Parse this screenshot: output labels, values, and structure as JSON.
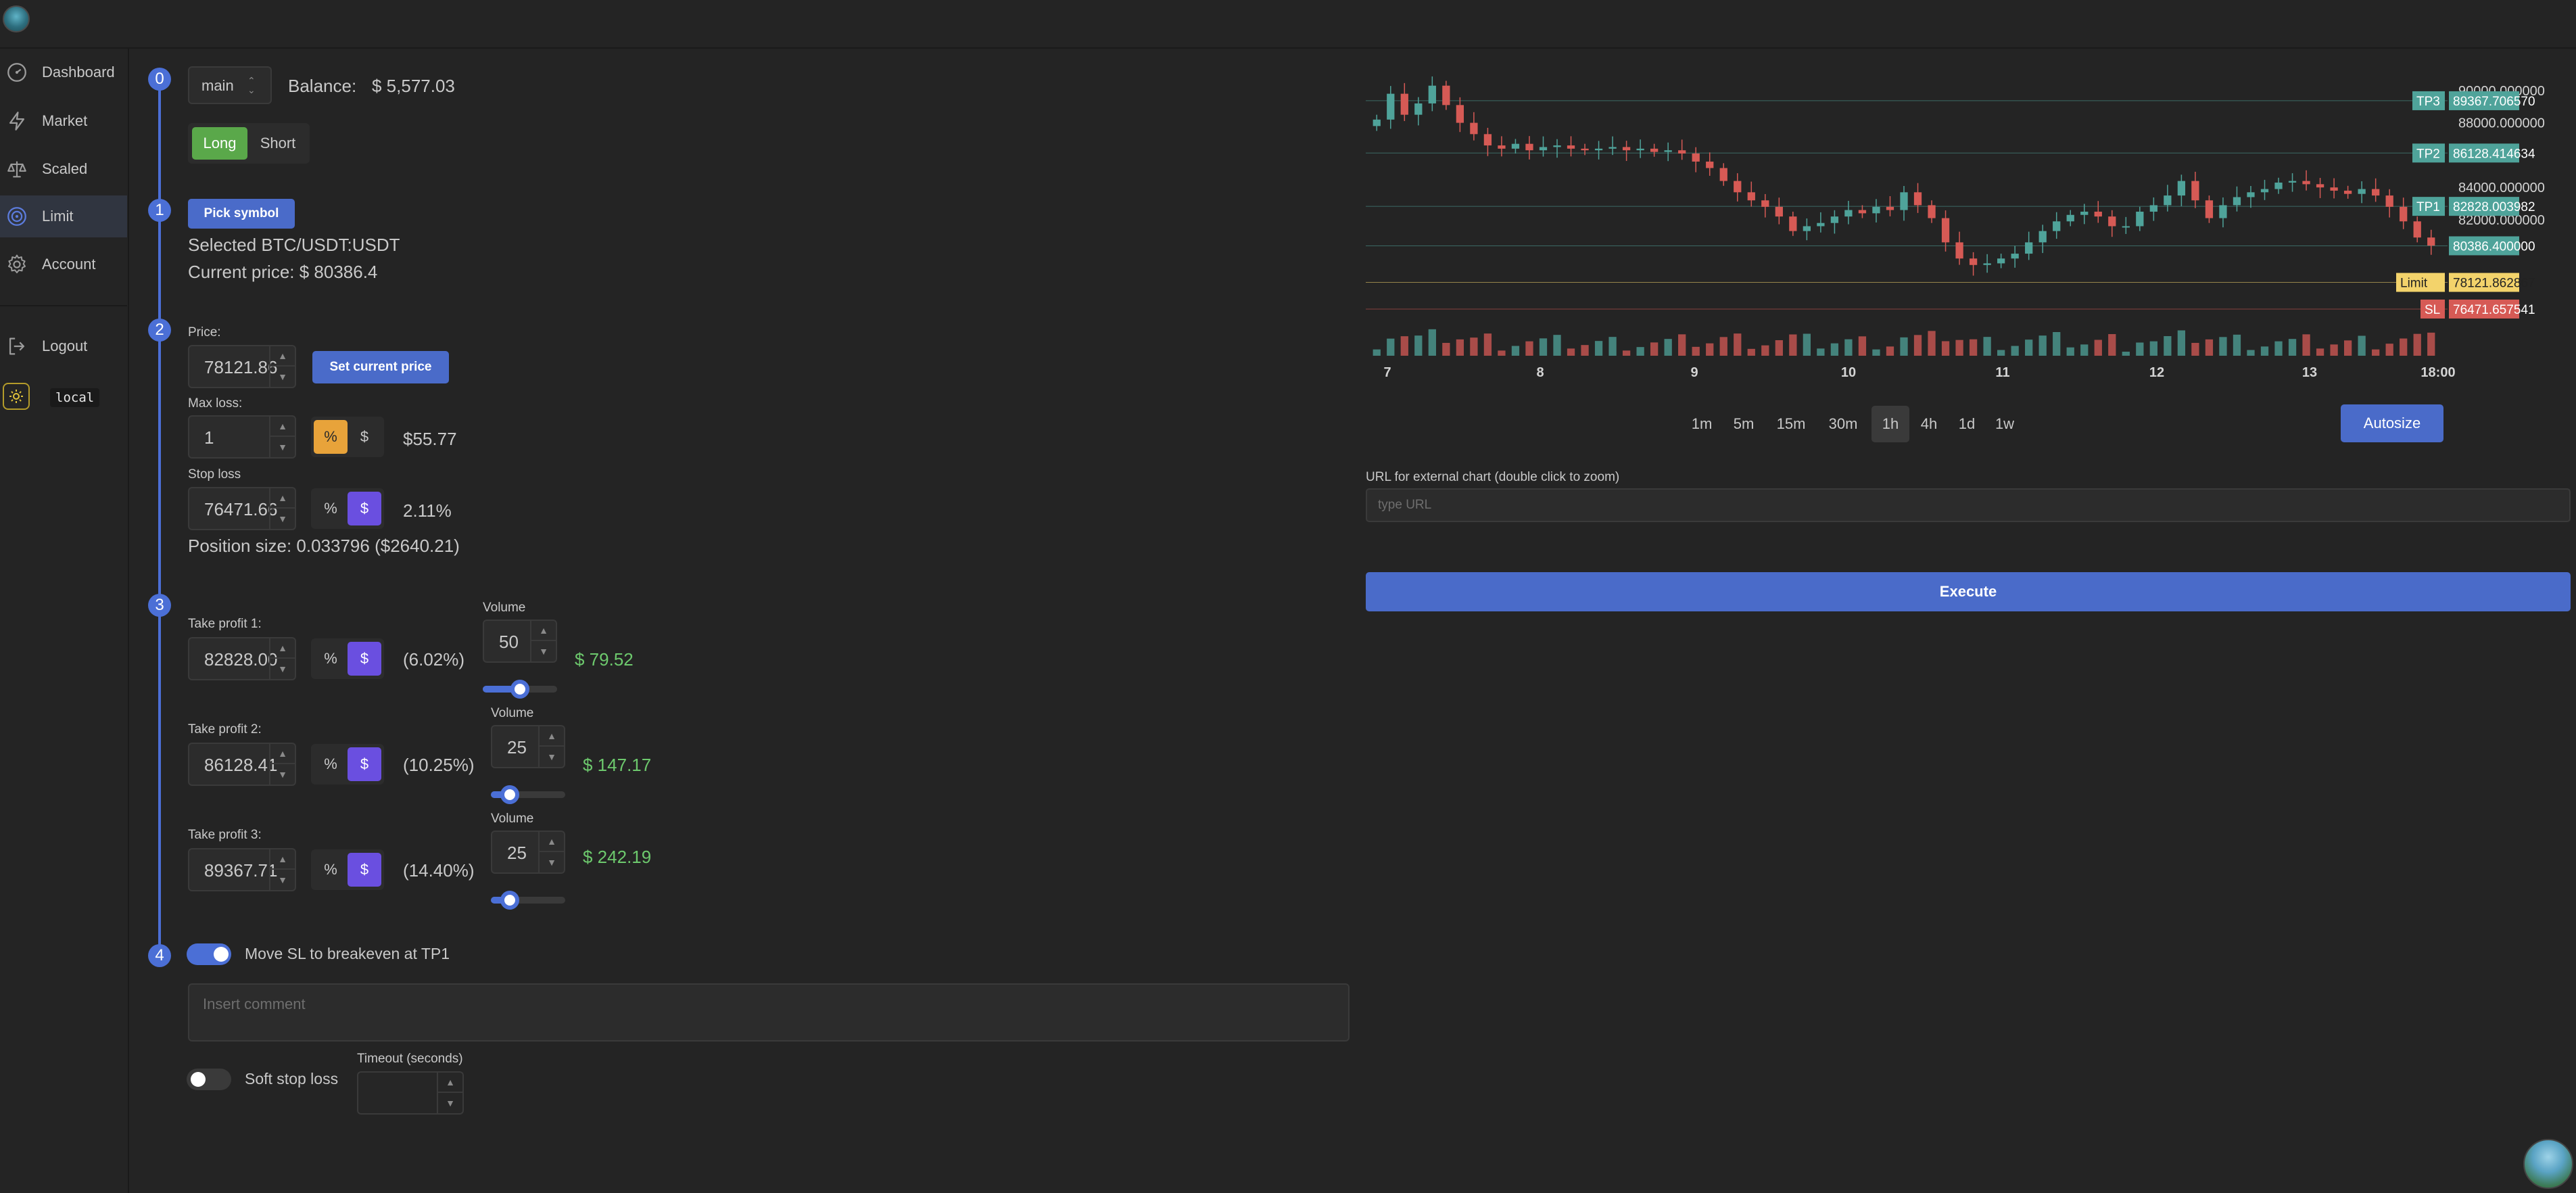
{
  "sidebar": {
    "items": [
      {
        "label": "Dashboard",
        "icon": "dashboard-icon"
      },
      {
        "label": "Market",
        "icon": "bolt-icon"
      },
      {
        "label": "Scaled",
        "icon": "scale-icon"
      },
      {
        "label": "Limit",
        "icon": "target-icon"
      },
      {
        "label": "Account",
        "icon": "gear-icon"
      },
      {
        "label": "Logout",
        "icon": "logout-icon"
      }
    ],
    "env_badge": "local"
  },
  "steps": [
    "0",
    "1",
    "2",
    "3",
    "4"
  ],
  "form": {
    "account_select": "main",
    "balance_label": "Balance:",
    "balance_value": "$ 5,577.03",
    "side_long": "Long",
    "side_short": "Short",
    "pick_symbol": "Pick symbol",
    "selected_symbol": "Selected BTC/USDT:USDT",
    "current_price": "Current price: $ 80386.4",
    "price_label": "Price:",
    "price_value": "78121.86",
    "set_current_price": "Set current price",
    "max_loss_label": "Max loss:",
    "max_loss_value": "1",
    "pct": "%",
    "usd": "$",
    "max_loss_usd": "$55.77",
    "stop_loss_label": "Stop loss",
    "stop_loss_value": "76471.66",
    "stop_loss_pct": "2.11%",
    "position_size": "Position size: 0.033796 ($2640.21)",
    "volume_label": "Volume",
    "take_profits": [
      {
        "label": "Take profit 1:",
        "value": "82828.00",
        "pct": "(6.02%)",
        "volume": "50",
        "profit": "$ 79.52",
        "level": 0.5
      },
      {
        "label": "Take profit 2:",
        "value": "86128.41",
        "pct": "(10.25%)",
        "volume": "25",
        "profit": "$ 147.17",
        "level": 0.25
      },
      {
        "label": "Take profit 3:",
        "value": "89367.71",
        "pct": "(14.40%)",
        "volume": "25",
        "profit": "$ 242.19",
        "level": 0.25
      }
    ],
    "move_sl_label": "Move SL to breakeven at TP1",
    "comment_placeholder": "Insert comment",
    "soft_sl_label": "Soft stop loss",
    "timeout_label": "Timeout (seconds)"
  },
  "chart_panel": {
    "timeframes": [
      "1m",
      "5m",
      "15m",
      "30m",
      "1h",
      "4h",
      "1d",
      "1w"
    ],
    "active_timeframe": "1h",
    "autosize": "Autosize",
    "url_label": "URL for external chart (double click to zoom)",
    "url_placeholder": "type URL",
    "execute": "Execute"
  },
  "chart_data": {
    "type": "candlestick",
    "x_ticks": [
      "7",
      "8",
      "9",
      "10",
      "11",
      "12",
      "13",
      "18:00"
    ],
    "y_ticks": [
      "90000.000000",
      "88000.000000",
      "84000.000000",
      "82000.000000"
    ],
    "ylim": [
      74000,
      91500
    ],
    "close_series": [
      88200,
      89800,
      88500,
      89200,
      90300,
      89100,
      88000,
      87300,
      86600,
      86400,
      86700,
      86300,
      86500,
      86600,
      86400,
      86300,
      86400,
      86500,
      86300,
      86400,
      86200,
      86300,
      86100,
      85600,
      85200,
      84400,
      83700,
      83200,
      82800,
      82200,
      81300,
      81600,
      81800,
      82200,
      82600,
      82400,
      82800,
      82600,
      83700,
      82900,
      82100,
      80600,
      79600,
      79200,
      79300,
      79600,
      79900,
      80600,
      81300,
      81900,
      82300,
      82500,
      82200,
      81600,
      81600,
      82500,
      82900,
      83500,
      84400,
      83200,
      82100,
      82900,
      83400,
      83700,
      83900,
      84300,
      84400,
      84200,
      84000,
      83800,
      83600,
      83900,
      83500,
      82800,
      81900,
      80900,
      80400
    ],
    "levels": [
      {
        "name": "TP3",
        "value": 89367.70657,
        "label": "89367.706570",
        "color": "#4fa39a"
      },
      {
        "name": "TP2",
        "value": 86128.414634,
        "label": "86128.414634",
        "color": "#4fa39a"
      },
      {
        "name": "TP1",
        "value": 82828.003982,
        "label": "82828.003982",
        "color": "#4fa39a"
      },
      {
        "name": "",
        "value": 80386.4,
        "label": "80386.400000",
        "color": "#4fa39a"
      },
      {
        "name": "Limit",
        "value": 78121.862867,
        "label": "78121.862867",
        "color": "#f3d36b"
      },
      {
        "name": "SL",
        "value": 76471.657541,
        "label": "76471.657541",
        "color": "#d65a55"
      }
    ],
    "up_color": "#4fa39a",
    "down_color": "#d65a55"
  }
}
